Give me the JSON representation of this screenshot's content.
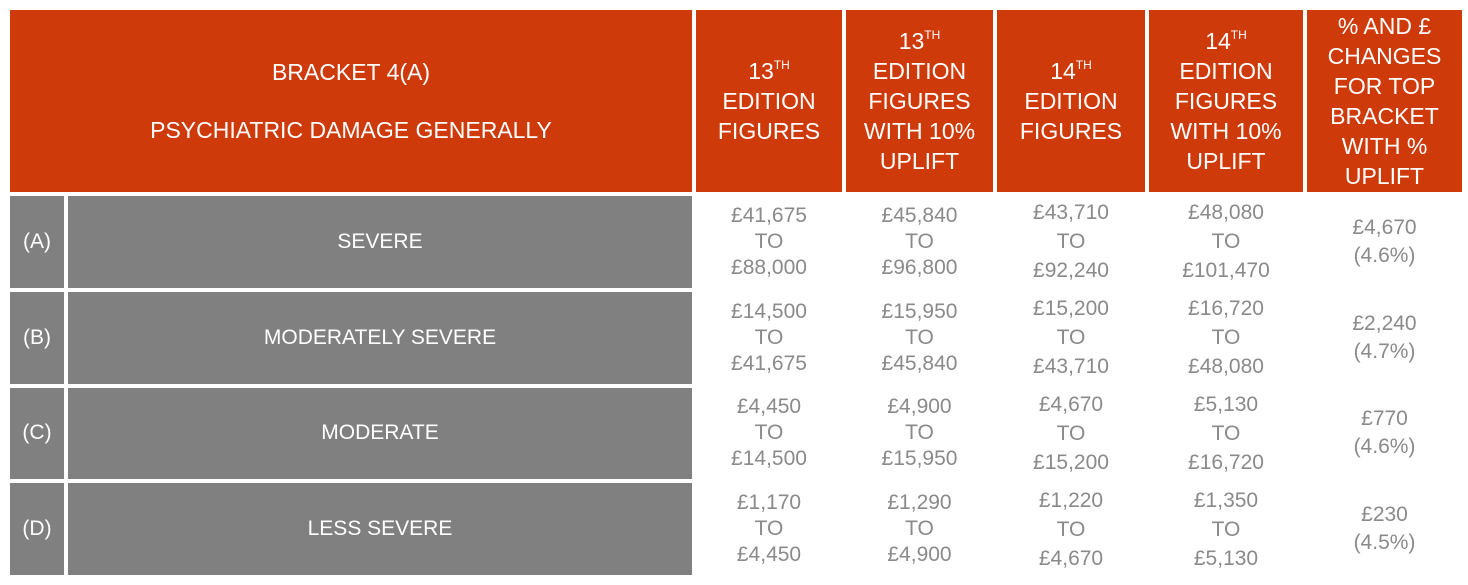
{
  "header": {
    "title_line1": "BRACKET 4(A)",
    "title_line2": "PSYCHIATRIC DAMAGE GENERALLY",
    "col1": {
      "ord_num": "13",
      "ord_suffix": "TH",
      "rest": [
        "EDITION",
        "FIGURES"
      ]
    },
    "col2": {
      "ord_num": "13",
      "ord_suffix": "TH",
      "rest": [
        "EDITION",
        "FIGURES",
        "WITH 10%",
        "UPLIFT"
      ]
    },
    "col3": {
      "ord_num": "14",
      "ord_suffix": "TH",
      "rest": [
        "EDITION",
        "FIGURES"
      ]
    },
    "col4": {
      "ord_num": "14",
      "ord_suffix": "TH",
      "rest": [
        "EDITION",
        "FIGURES",
        "WITH 10%",
        "UPLIFT"
      ]
    },
    "col5": [
      "% AND £",
      "CHANGES",
      "FOR TOP",
      "BRACKET",
      "WITH %",
      "UPLIFT"
    ]
  },
  "rows": [
    {
      "letter": "(A)",
      "label": "SEVERE",
      "ed13": [
        "£41,675",
        "TO",
        "£88,000"
      ],
      "ed13_uplift": [
        "£45,840",
        "TO",
        "£96,800"
      ],
      "ed14": [
        "£43,710",
        "TO",
        "£92,240"
      ],
      "ed14_uplift": [
        "£48,080",
        "TO",
        "£101,470"
      ],
      "change": [
        "£4,670",
        "(4.6%)"
      ]
    },
    {
      "letter": "(B)",
      "label": "MODERATELY SEVERE",
      "ed13": [
        "£14,500",
        "TO",
        "£41,675"
      ],
      "ed13_uplift": [
        "£15,950",
        "TO",
        "£45,840"
      ],
      "ed14": [
        "£15,200",
        "TO",
        "£43,710"
      ],
      "ed14_uplift": [
        "£16,720",
        "TO",
        "£48,080"
      ],
      "change": [
        "£2,240",
        "(4.7%)"
      ]
    },
    {
      "letter": "(C)",
      "label": "MODERATE",
      "ed13": [
        "£4,450",
        "TO",
        "£14,500"
      ],
      "ed13_uplift": [
        "£4,900",
        "TO",
        "£15,950"
      ],
      "ed14": [
        "£4,670",
        "TO",
        "£15,200"
      ],
      "ed14_uplift": [
        "£5,130",
        "TO",
        "£16,720"
      ],
      "change": [
        "£770",
        "(4.6%)"
      ]
    },
    {
      "letter": "(D)",
      "label": "LESS SEVERE",
      "ed13": [
        "£1,170",
        "TO",
        "£4,450"
      ],
      "ed13_uplift": [
        "£1,290",
        "TO",
        "£4,900"
      ],
      "ed14": [
        "£1,220",
        "TO",
        "£4,670"
      ],
      "ed14_uplift": [
        "£1,350",
        "TO",
        "£5,130"
      ],
      "change": [
        "£230",
        "(4.5%)"
      ]
    }
  ],
  "colors": {
    "header_bg": "#cf3a0a",
    "label_bg": "#808080",
    "value_text": "#8a8a8a"
  }
}
